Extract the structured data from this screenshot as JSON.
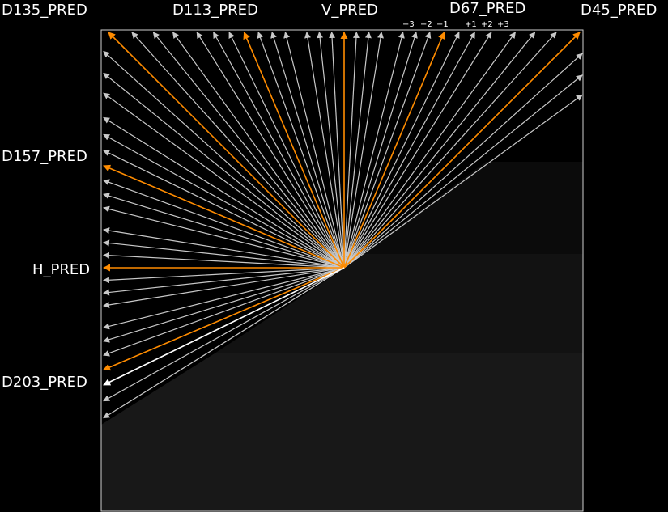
{
  "colors": {
    "background": "#000000",
    "frame": "#cfcfcf",
    "ray_default": "#c8c8c8",
    "ray_nominal": "#ff8c00",
    "ray_highlight": "#ffffff",
    "block_shade_1": "#0b0b0b",
    "block_shade_2": "#121212",
    "block_shade_3": "#181818",
    "label": "#ffffff"
  },
  "labels": {
    "d135": "D135_PRED",
    "d113": "D113_PRED",
    "v": "V_PRED",
    "d67": "D67_PRED",
    "d45": "D45_PRED",
    "d157": "D157_PRED",
    "h": "H_PRED",
    "d203": "D203_PRED"
  },
  "delta_labels": {
    "m3": "−3",
    "m2": "−2",
    "m1": "−1",
    "p1": "+1",
    "p2": "+2",
    "p3": "+3"
  },
  "nominal_modes": [
    "D45_PRED",
    "D67_PRED",
    "V_PRED",
    "D113_PRED",
    "D135_PRED",
    "D157_PRED",
    "H_PRED",
    "D203_PRED"
  ],
  "angle_deltas": [
    -3,
    -2,
    -1,
    0,
    1,
    2,
    3
  ]
}
